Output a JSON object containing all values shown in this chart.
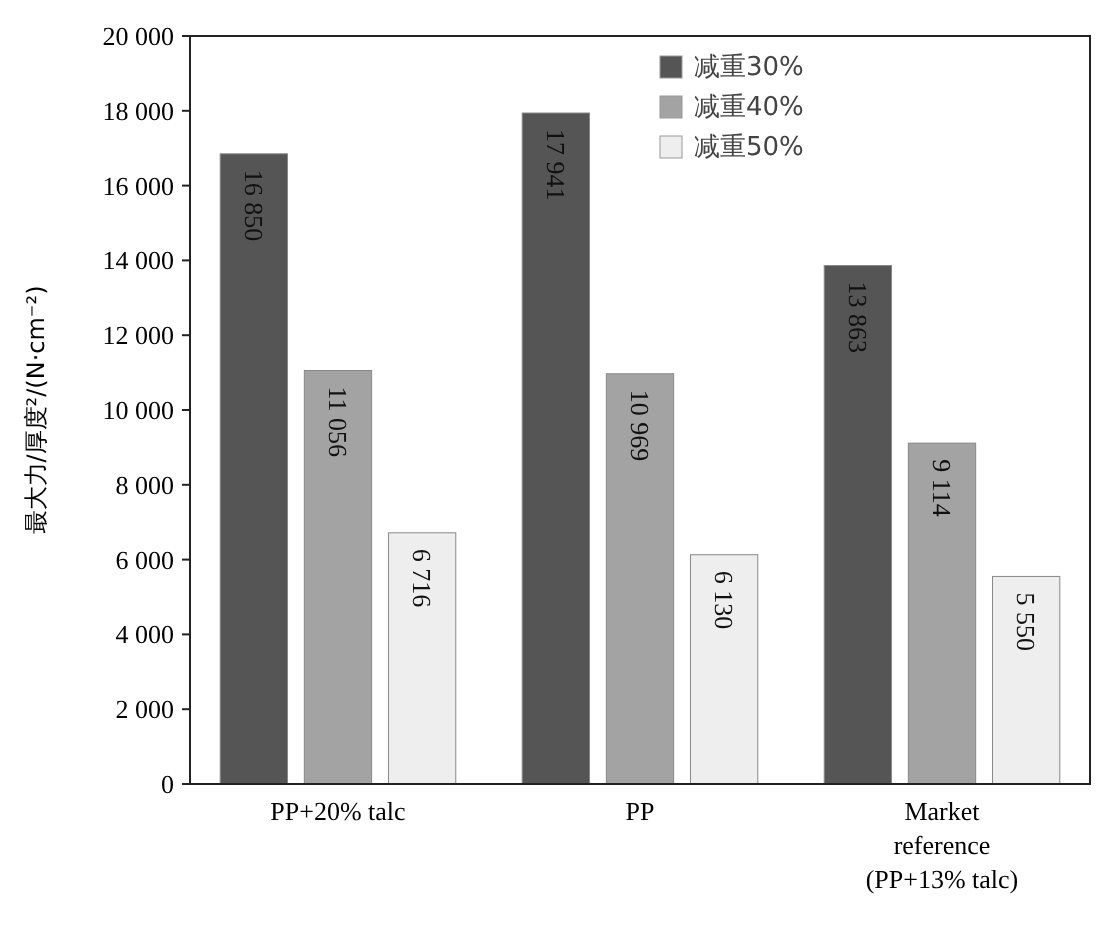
{
  "chart_data": {
    "type": "bar",
    "ylabel": "最大力/厚度²/(N·cm⁻²)",
    "categories": [
      "PP+20% talc",
      "PP",
      "Market reference (PP+13% talc)"
    ],
    "series": [
      {
        "name": "减重30%",
        "color": "#555555",
        "values": [
          16850,
          17941,
          13863
        ],
        "value_labels": [
          "16 850",
          "17 941",
          "13 863"
        ]
      },
      {
        "name": "减重40%",
        "color": "#a3a3a3",
        "values": [
          11056,
          10969,
          9114
        ],
        "value_labels": [
          "11 056",
          "10 969",
          "9 114"
        ]
      },
      {
        "name": "减重50%",
        "color": "#eeeeee",
        "values": [
          6716,
          6130,
          5550
        ],
        "value_labels": [
          "6 716",
          "6 130",
          "5 550"
        ]
      }
    ],
    "ylim": [
      0,
      20000
    ],
    "yticks": [
      0,
      {
        "value": 2000,
        "label": "2 000"
      },
      {
        "value": 4000,
        "label": "4 000"
      },
      {
        "value": 6000,
        "label": "6 000"
      },
      {
        "value": 8000,
        "label": "8 000"
      },
      {
        "value": 10000,
        "label": "10 000"
      },
      {
        "value": 12000,
        "label": "12 000"
      },
      {
        "value": 14000,
        "label": "14 000"
      },
      {
        "value": 16000,
        "label": "16 000"
      },
      {
        "value": 18000,
        "label": "18 000"
      },
      {
        "value": 20000,
        "label": "20 000"
      }
    ],
    "legend": "top right"
  }
}
